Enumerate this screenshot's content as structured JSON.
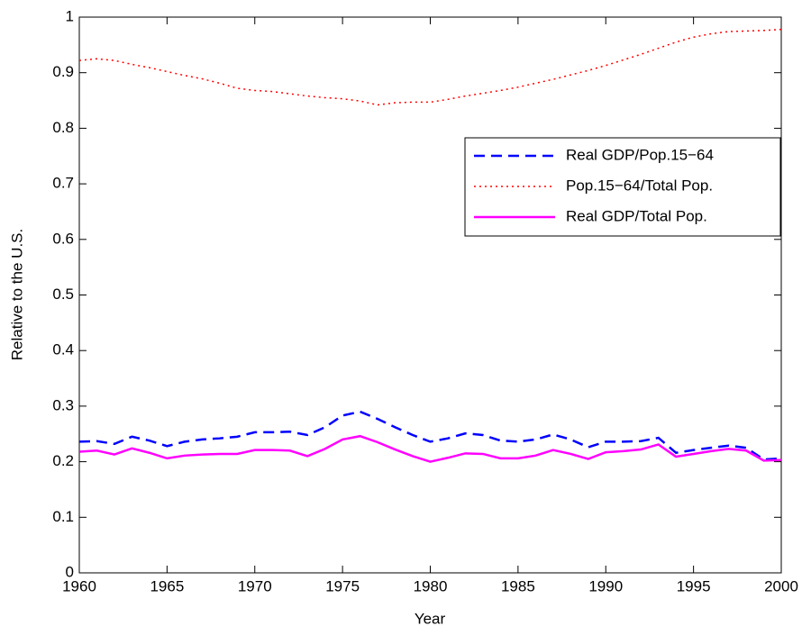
{
  "chart_data": {
    "type": "line",
    "xlabel": "Year",
    "ylabel": "Relative to the U.S.",
    "x": [
      1960,
      1961,
      1962,
      1963,
      1964,
      1965,
      1966,
      1967,
      1968,
      1969,
      1970,
      1971,
      1972,
      1973,
      1974,
      1975,
      1976,
      1977,
      1978,
      1979,
      1980,
      1981,
      1982,
      1983,
      1984,
      1985,
      1986,
      1987,
      1988,
      1989,
      1990,
      1991,
      1992,
      1993,
      1994,
      1995,
      1996,
      1997,
      1998,
      1999,
      2000
    ],
    "series": [
      {
        "name": "Real GDP/Pop.15−64",
        "color": "#0000ff",
        "line_style": "dashed",
        "values": [
          0.236,
          0.237,
          0.232,
          0.245,
          0.238,
          0.228,
          0.236,
          0.24,
          0.242,
          0.245,
          0.253,
          0.253,
          0.254,
          0.248,
          0.262,
          0.283,
          0.29,
          0.277,
          0.262,
          0.248,
          0.236,
          0.242,
          0.251,
          0.248,
          0.238,
          0.236,
          0.24,
          0.249,
          0.24,
          0.226,
          0.236,
          0.236,
          0.237,
          0.243,
          0.216,
          0.221,
          0.225,
          0.229,
          0.225,
          0.204,
          0.206
        ]
      },
      {
        "name": "Pop.15−64/Total Pop.",
        "color": "#ff0000",
        "line_style": "dotted",
        "values": [
          0.922,
          0.925,
          0.922,
          0.915,
          0.909,
          0.902,
          0.895,
          0.889,
          0.881,
          0.872,
          0.868,
          0.866,
          0.862,
          0.858,
          0.855,
          0.853,
          0.849,
          0.842,
          0.846,
          0.847,
          0.847,
          0.852,
          0.858,
          0.863,
          0.868,
          0.874,
          0.881,
          0.888,
          0.896,
          0.904,
          0.913,
          0.923,
          0.933,
          0.944,
          0.955,
          0.964,
          0.97,
          0.974,
          0.975,
          0.976,
          0.978
        ]
      },
      {
        "name": "Real GDP/Total Pop.",
        "color": "#ff00ff",
        "line_style": "solid",
        "values": [
          0.218,
          0.22,
          0.213,
          0.224,
          0.216,
          0.206,
          0.211,
          0.213,
          0.214,
          0.214,
          0.221,
          0.221,
          0.22,
          0.21,
          0.223,
          0.24,
          0.246,
          0.235,
          0.222,
          0.21,
          0.2,
          0.207,
          0.215,
          0.214,
          0.206,
          0.206,
          0.211,
          0.221,
          0.214,
          0.205,
          0.217,
          0.219,
          0.222,
          0.231,
          0.209,
          0.214,
          0.219,
          0.223,
          0.22,
          0.202,
          0.203
        ]
      }
    ],
    "xlim": [
      1960,
      2000
    ],
    "xticks": [
      1960,
      1965,
      1970,
      1975,
      1980,
      1985,
      1990,
      1995,
      2000
    ],
    "ylim": [
      0,
      1
    ],
    "yticks": [
      0,
      0.1,
      0.2,
      0.3,
      0.4,
      0.5,
      0.6,
      0.7,
      0.8,
      0.9,
      1
    ],
    "grid": false,
    "legend": "upper right"
  }
}
